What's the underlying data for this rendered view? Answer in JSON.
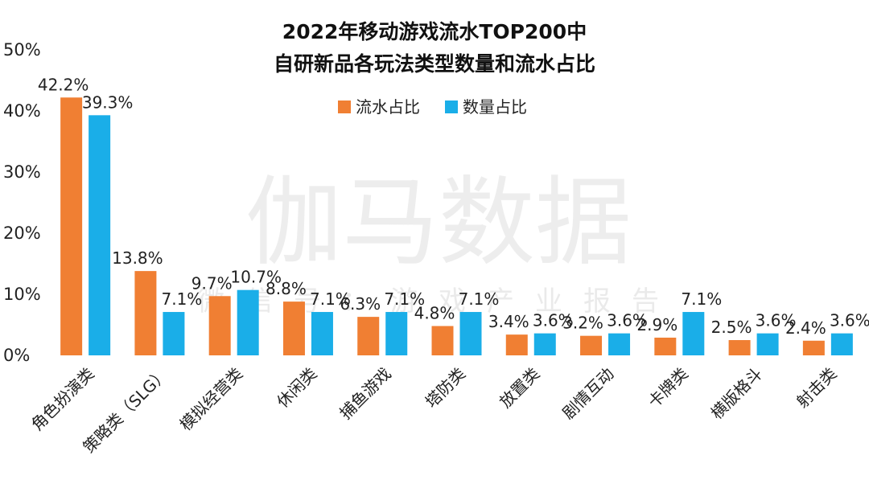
{
  "watermark": {
    "main": "伽马数据",
    "sub": "微信号：游戏产业报告"
  },
  "chart_data": {
    "type": "bar",
    "title_lines": [
      "2022年移动游戏流水TOP200中",
      "自研新品各玩法类型数量和流水占比"
    ],
    "categories": [
      "角色扮演类",
      "策略类（SLG）",
      "模拟经营类",
      "休闲类",
      "捕鱼游戏",
      "塔防类",
      "放置类",
      "剧情互动",
      "卡牌类",
      "横版格斗",
      "射击类"
    ],
    "series": [
      {
        "name": "流水占比",
        "color": "#F07F33",
        "values": [
          42.2,
          13.8,
          9.7,
          8.8,
          6.3,
          4.8,
          3.4,
          3.2,
          2.9,
          2.5,
          2.4
        ]
      },
      {
        "name": "数量占比",
        "color": "#1AAEE8",
        "values": [
          39.3,
          7.1,
          10.7,
          7.1,
          7.1,
          7.1,
          3.6,
          3.6,
          7.1,
          3.6,
          3.6
        ]
      }
    ],
    "yticks": [
      "0%",
      "10%",
      "20%",
      "30%",
      "40%",
      "50%"
    ],
    "ylim": [
      0,
      50
    ],
    "value_suffix": "%",
    "legend_position": "top-center"
  }
}
